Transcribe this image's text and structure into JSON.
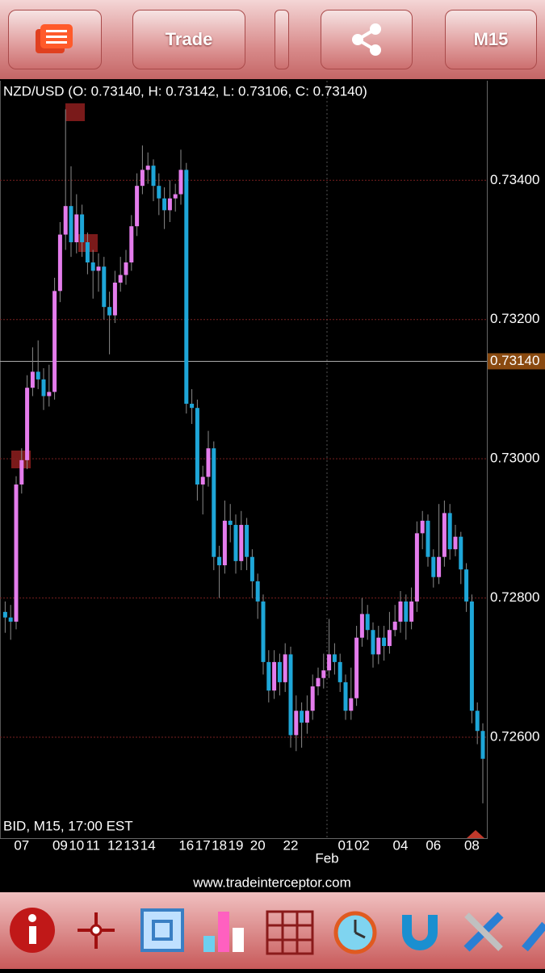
{
  "top_bar": {
    "trade": "Trade",
    "timeframe": "M15"
  },
  "chart_data": {
    "type": "candlestick",
    "title": "NZD/USD (O: 0.73140, H: 0.73142, L: 0.73106, C: 0.73140)",
    "footer_label": "BID, M15, 17:00 EST",
    "month_label": "Feb",
    "up_color": "#e47cec",
    "down_color": "#1ea6d8",
    "open": [
      0.7278,
      0.72772,
      0.72766,
      0.72963,
      0.72998,
      0.73102,
      0.73125,
      0.73114,
      0.7309,
      0.73096,
      0.73241,
      0.73322,
      0.73363,
      0.73311,
      0.73351,
      0.73311,
      0.73282,
      0.7327,
      0.73276,
      0.73218,
      0.73206,
      0.73253,
      0.73264,
      0.73282,
      0.73334,
      0.73392,
      0.73415,
      0.73421,
      0.73392,
      0.73374,
      0.73357,
      0.73374,
      0.7338,
      0.73415,
      0.73079,
      0.73073,
      0.72963,
      0.72974,
      0.73015,
      0.72859,
      0.72847,
      0.72911,
      0.72905,
      0.72853,
      0.72905,
      0.72859,
      0.72824,
      0.72795,
      0.72708,
      0.72667,
      0.72708,
      0.72679,
      0.72719,
      0.72603,
      0.72638,
      0.72621,
      0.72638,
      0.72673,
      0.72685,
      0.72696,
      0.72719,
      0.72708,
      0.72679,
      0.72638,
      0.72656,
      0.72743,
      0.72777,
      0.72754,
      0.72719,
      0.72743,
      0.72731,
      0.72754,
      0.72766,
      0.72795,
      0.72766,
      0.72795,
      0.72893,
      0.72911,
      0.72859,
      0.7283,
      0.72859,
      0.72922,
      0.7287,
      0.72888,
      0.72841,
      0.72795,
      0.72638,
      0.72609
    ],
    "high": [
      0.72795,
      0.7279,
      0.72975,
      0.73015,
      0.7312,
      0.7316,
      0.7317,
      0.7313,
      0.73135,
      0.7326,
      0.7334,
      0.73502,
      0.7342,
      0.7338,
      0.73365,
      0.73325,
      0.733,
      0.73295,
      0.7329,
      0.7324,
      0.7327,
      0.7329,
      0.733,
      0.7335,
      0.7341,
      0.7345,
      0.7344,
      0.7343,
      0.7341,
      0.7339,
      0.734,
      0.73395,
      0.73444,
      0.73425,
      0.731,
      0.73085,
      0.7299,
      0.7304,
      0.73025,
      0.72875,
      0.7294,
      0.72935,
      0.7292,
      0.72925,
      0.72915,
      0.7287,
      0.72835,
      0.72805,
      0.72725,
      0.72725,
      0.7272,
      0.72735,
      0.7273,
      0.7266,
      0.7265,
      0.7266,
      0.7269,
      0.727,
      0.7272,
      0.7277,
      0.72735,
      0.7272,
      0.7269,
      0.727,
      0.7276,
      0.728,
      0.7279,
      0.72765,
      0.7276,
      0.7276,
      0.7278,
      0.7279,
      0.7281,
      0.72805,
      0.72815,
      0.7291,
      0.72925,
      0.7292,
      0.7287,
      0.72935,
      0.7294,
      0.72935,
      0.72905,
      0.72895,
      0.7285,
      0.72805,
      0.7265,
      0.7262
    ],
    "low": [
      0.7275,
      0.7274,
      0.72755,
      0.7295,
      0.72985,
      0.7309,
      0.731,
      0.7307,
      0.73075,
      0.73085,
      0.73225,
      0.733,
      0.7329,
      0.73295,
      0.7329,
      0.73265,
      0.7323,
      0.7324,
      0.732,
      0.7315,
      0.73195,
      0.7324,
      0.7325,
      0.7327,
      0.7332,
      0.7338,
      0.73395,
      0.7337,
      0.7335,
      0.7333,
      0.7334,
      0.73355,
      0.73365,
      0.73065,
      0.7305,
      0.7294,
      0.7292,
      0.7296,
      0.7284,
      0.728,
      0.72835,
      0.7288,
      0.72835,
      0.7284,
      0.7284,
      0.728,
      0.7277,
      0.7269,
      0.7265,
      0.72655,
      0.7266,
      0.72665,
      0.72585,
      0.7258,
      0.72585,
      0.72605,
      0.72625,
      0.7266,
      0.7267,
      0.72685,
      0.7269,
      0.72665,
      0.72625,
      0.72625,
      0.72645,
      0.7273,
      0.7274,
      0.727,
      0.72705,
      0.7271,
      0.7272,
      0.72745,
      0.7275,
      0.7274,
      0.72755,
      0.7278,
      0.7287,
      0.72845,
      0.72815,
      0.7282,
      0.72845,
      0.72855,
      0.7286,
      0.7282,
      0.7278,
      0.7262,
      0.7259,
      0.72505
    ],
    "close": [
      0.72772,
      0.72766,
      0.72963,
      0.72998,
      0.73102,
      0.73125,
      0.73114,
      0.7309,
      0.73096,
      0.73241,
      0.73322,
      0.73363,
      0.73311,
      0.73351,
      0.73311,
      0.73282,
      0.7327,
      0.73276,
      0.73218,
      0.73206,
      0.73253,
      0.73264,
      0.73282,
      0.73334,
      0.73392,
      0.73415,
      0.73421,
      0.73392,
      0.73374,
      0.73357,
      0.73374,
      0.7338,
      0.73415,
      0.73079,
      0.73073,
      0.72963,
      0.72974,
      0.73015,
      0.72859,
      0.72847,
      0.72911,
      0.72905,
      0.72853,
      0.72905,
      0.72859,
      0.72824,
      0.72795,
      0.72708,
      0.72667,
      0.72708,
      0.72679,
      0.72719,
      0.72603,
      0.72638,
      0.72621,
      0.72638,
      0.72673,
      0.72685,
      0.72696,
      0.72719,
      0.72708,
      0.72679,
      0.72638,
      0.72656,
      0.72743,
      0.72777,
      0.72754,
      0.72719,
      0.72743,
      0.72731,
      0.72754,
      0.72766,
      0.72795,
      0.72766,
      0.72795,
      0.72893,
      0.72911,
      0.72859,
      0.7283,
      0.72859,
      0.72922,
      0.7287,
      0.72888,
      0.72841,
      0.72795,
      0.72638,
      0.72609,
      0.72569
    ],
    "ylim": [
      0.72455,
      0.73543
    ],
    "yticks": [
      {
        "value": 0.726,
        "label": "0.72600"
      },
      {
        "value": 0.728,
        "label": "0.72800"
      },
      {
        "value": 0.73,
        "label": "0.73000"
      },
      {
        "value": 0.732,
        "label": "0.73200"
      },
      {
        "value": 0.734,
        "label": "0.73400"
      }
    ],
    "xticks": [
      {
        "value": 3,
        "label": "07"
      },
      {
        "value": 10,
        "label": "09"
      },
      {
        "value": 13,
        "label": "10"
      },
      {
        "value": 16,
        "label": "11"
      },
      {
        "value": 20,
        "label": "12"
      },
      {
        "value": 23,
        "label": "13"
      },
      {
        "value": 26,
        "label": "14"
      },
      {
        "value": 33,
        "label": "16"
      },
      {
        "value": 36,
        "label": "17"
      },
      {
        "value": 39,
        "label": "18"
      },
      {
        "value": 42,
        "label": "19"
      },
      {
        "value": 46,
        "label": "20"
      },
      {
        "value": 52,
        "label": "22"
      },
      {
        "value": 62,
        "label": "01"
      },
      {
        "value": 65,
        "label": "02"
      },
      {
        "value": 72,
        "label": "04"
      },
      {
        "value": 78,
        "label": "06"
      },
      {
        "value": 85,
        "label": "08"
      }
    ],
    "current_price": {
      "value": 0.7314,
      "label": "0.73140"
    },
    "grid": true
  },
  "footer": {
    "website": "www.tradeinterceptor.com"
  }
}
